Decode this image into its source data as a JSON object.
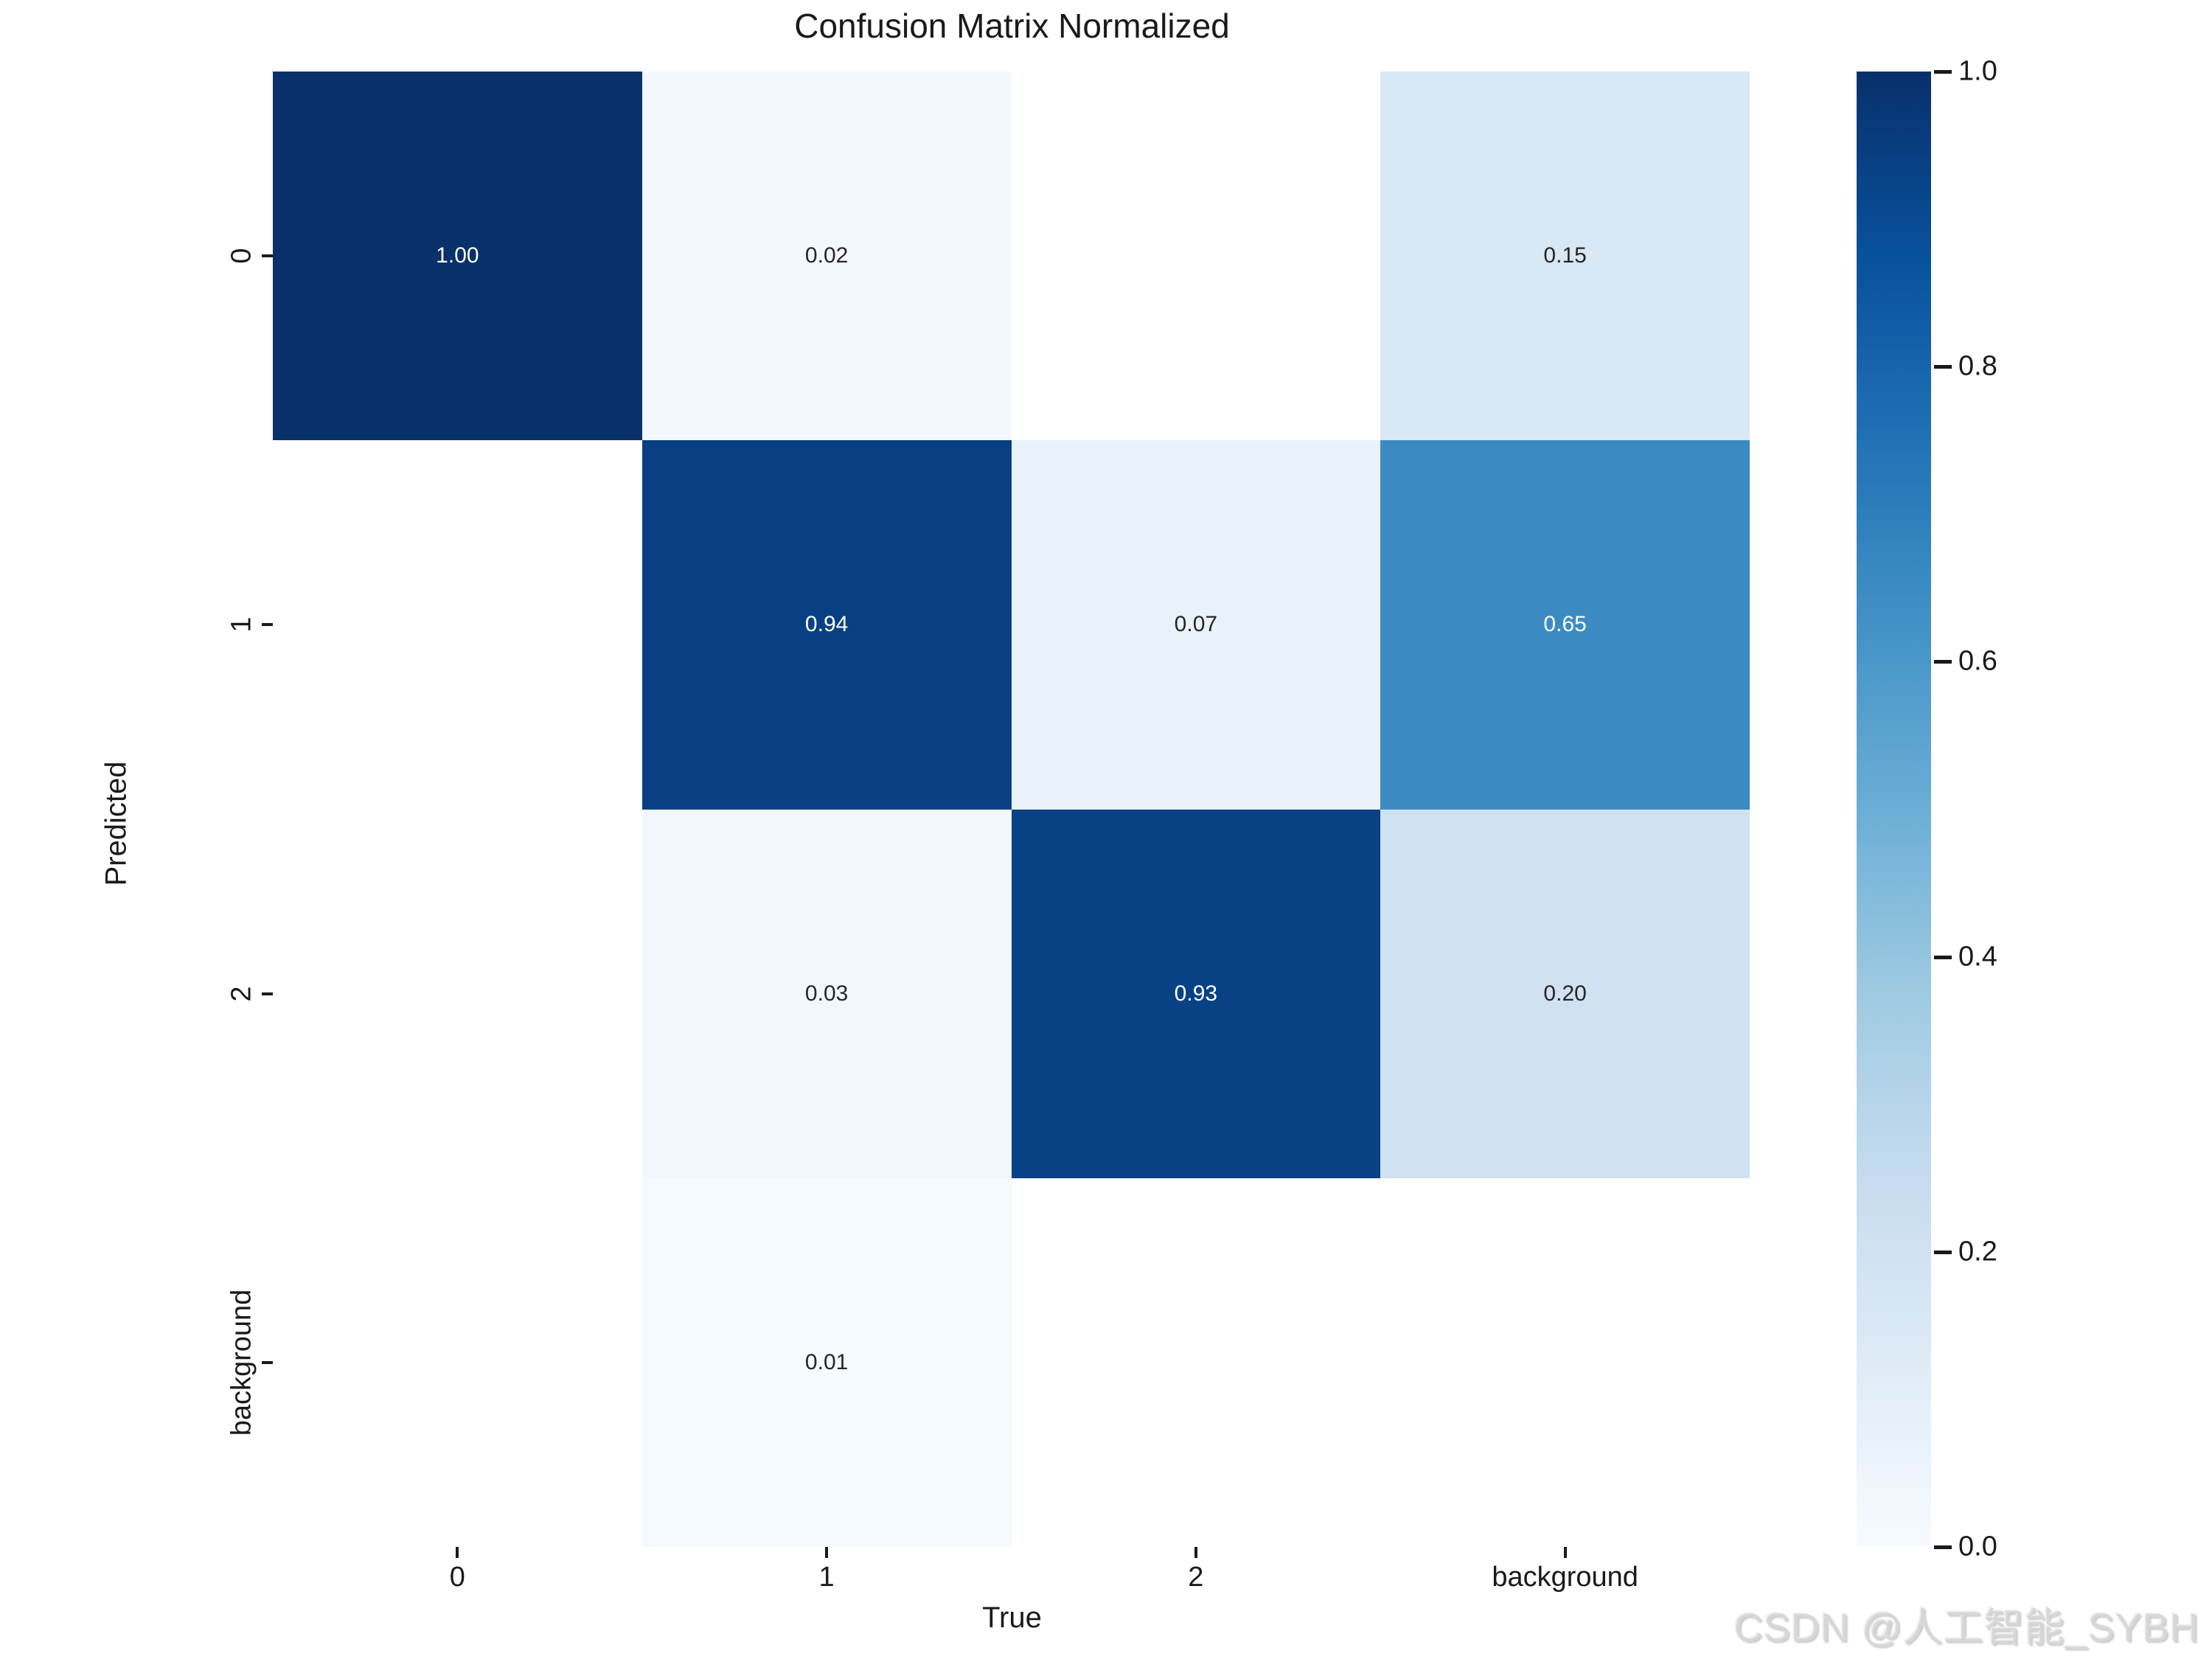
{
  "title": "Confusion Matrix Normalized",
  "axes": {
    "x_label": "True",
    "y_label": "Predicted",
    "x_ticks": [
      "0",
      "1",
      "2",
      "background"
    ],
    "y_ticks": [
      "0",
      "1",
      "2",
      "background"
    ]
  },
  "colorbar": {
    "tick_labels": [
      "1.0",
      "0.8",
      "0.6",
      "0.4",
      "0.2",
      "0.0"
    ],
    "gradient_low_to_high": [
      "#f7fbff",
      "#deebf7",
      "#c6dbef",
      "#9ecae1",
      "#6baed6",
      "#4292c6",
      "#2171b5",
      "#08519c",
      "#08306b"
    ]
  },
  "watermark": "CSDN @人工智能_SYBH",
  "colors": {
    "background": "#ffffff",
    "text": "#1a1a1a",
    "annot_dark": "#262626",
    "annot_light": "#ffffff",
    "empty_cell": "#ffffff"
  },
  "chart_data": {
    "type": "heatmap",
    "title": "Confusion Matrix Normalized",
    "xlabel": "True",
    "ylabel": "Predicted",
    "x_categories": [
      "0",
      "1",
      "2",
      "background"
    ],
    "y_categories": [
      "0",
      "1",
      "2",
      "background"
    ],
    "colormap": "Blues",
    "vmin": 0.0,
    "vmax": 1.0,
    "legend_position": "right-colorbar",
    "grid": false,
    "cells": [
      [
        {
          "value": 1.0,
          "label": "1.00",
          "bg": "#08306b",
          "fg": "#ffffff"
        },
        {
          "value": 0.02,
          "label": "0.02",
          "bg": "#f3f8fe",
          "fg": "#262626"
        },
        {
          "value": null,
          "label": "",
          "bg": "#ffffff",
          "fg": "#262626"
        },
        {
          "value": 0.15,
          "label": "0.15",
          "bg": "#d9e8f5",
          "fg": "#262626"
        }
      ],
      [
        {
          "value": null,
          "label": "",
          "bg": "#ffffff",
          "fg": "#262626"
        },
        {
          "value": 0.94,
          "label": "0.94",
          "bg": "#084083",
          "fg": "#ffffff"
        },
        {
          "value": 0.07,
          "label": "0.07",
          "bg": "#e9f2fa",
          "fg": "#262626"
        },
        {
          "value": 0.65,
          "label": "0.65",
          "bg": "#3b8bc2",
          "fg": "#ffffff"
        }
      ],
      [
        {
          "value": null,
          "label": "",
          "bg": "#ffffff",
          "fg": "#262626"
        },
        {
          "value": 0.03,
          "label": "0.03",
          "bg": "#f1f7fd",
          "fg": "#262626"
        },
        {
          "value": 0.93,
          "label": "0.93",
          "bg": "#084285",
          "fg": "#ffffff"
        },
        {
          "value": 0.2,
          "label": "0.20",
          "bg": "#d0e1f2",
          "fg": "#262626"
        }
      ],
      [
        {
          "value": null,
          "label": "",
          "bg": "#ffffff",
          "fg": "#262626"
        },
        {
          "value": 0.01,
          "label": "0.01",
          "bg": "#f5fafe",
          "fg": "#262626"
        },
        {
          "value": null,
          "label": "",
          "bg": "#ffffff",
          "fg": "#262626"
        },
        {
          "value": null,
          "label": "",
          "bg": "#ffffff",
          "fg": "#262626"
        }
      ]
    ]
  }
}
